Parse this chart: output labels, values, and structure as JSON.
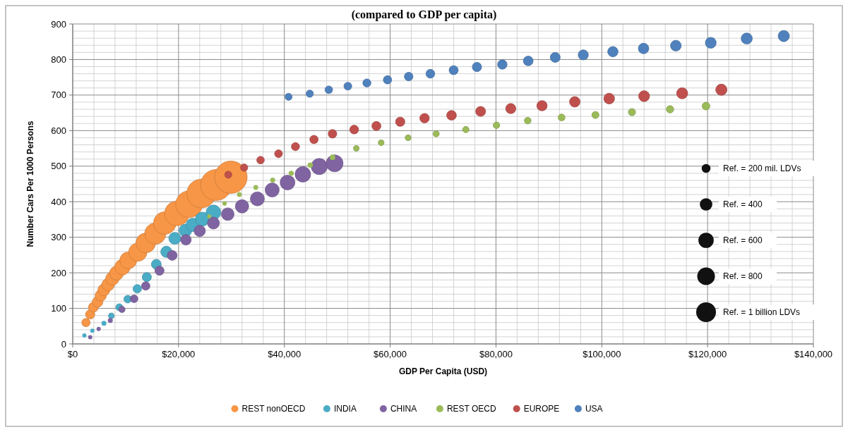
{
  "chart_data": {
    "type": "bubble",
    "title": "(compared to GDP per capita)",
    "xlabel": "GDP Per Capita (USD)",
    "ylabel": "Number Cars Per 1000 Persons",
    "xlim": [
      0,
      140000
    ],
    "ylim": [
      0,
      900
    ],
    "xticks": [
      {
        "value": 0,
        "label": "$0"
      },
      {
        "value": 20000,
        "label": "$20,000"
      },
      {
        "value": 40000,
        "label": "$40,000"
      },
      {
        "value": 60000,
        "label": "$60,000"
      },
      {
        "value": 80000,
        "label": "$80,000"
      },
      {
        "value": 100000,
        "label": "$100,000"
      },
      {
        "value": 120000,
        "label": "$120,000"
      },
      {
        "value": 140000,
        "label": "$140,000"
      }
    ],
    "yticks": [
      0,
      100,
      200,
      300,
      400,
      500,
      600,
      700,
      800,
      900
    ],
    "grid": true,
    "legend": "bottom",
    "size_legend": [
      {
        "value": 200,
        "label": "Ref. = 200 mil. LDVs"
      },
      {
        "value": 400,
        "label": "Ref. = 400"
      },
      {
        "value": 600,
        "label": "Ref. = 600"
      },
      {
        "value": 800,
        "label": "Ref. = 800"
      },
      {
        "value": 1000,
        "label": "Ref. = 1 billion LDVs"
      }
    ],
    "series": [
      {
        "name": "REST nonOECD",
        "color": "#f79646",
        "x": [
          2500,
          3300,
          3900,
          4700,
          5300,
          5900,
          6700,
          7500,
          8300,
          9400,
          10500,
          12300,
          13800,
          15600,
          17400,
          19700,
          22000,
          24300,
          27100,
          29900
        ],
        "values": [
          60,
          83,
          103,
          118,
          136,
          152,
          167,
          184,
          199,
          216,
          235,
          258,
          284,
          310,
          340,
          367,
          393,
          423,
          447,
          469
        ],
        "sizes": [
          180,
          220,
          250,
          290,
          330,
          370,
          410,
          460,
          510,
          620,
          730,
          860,
          1000,
          1150,
          1310,
          1560,
          1840,
          2140,
          2470,
          2700
        ]
      },
      {
        "name": "INDIA",
        "color": "#4bacc6",
        "x": [
          2200,
          3700,
          5900,
          7300,
          8800,
          10400,
          12200,
          14000,
          15800,
          17700,
          19300,
          21300,
          22700,
          24500,
          26600
        ],
        "values": [
          24,
          37,
          58,
          79,
          103,
          126,
          155,
          188,
          224,
          259,
          297,
          319,
          335,
          351,
          370
        ],
        "sizes": [
          46,
          46,
          63,
          82,
          128,
          154,
          184,
          216,
          250,
          327,
          369,
          413,
          460,
          510,
          563
        ]
      },
      {
        "name": "CHINA",
        "color": "#8064a2",
        "x": [
          3300,
          4900,
          7100,
          9300,
          11600,
          13800,
          16400,
          18800,
          21400,
          24000,
          26600,
          29300,
          32000,
          34900,
          37700,
          40600,
          43500,
          46600,
          49500
        ],
        "values": [
          19,
          42,
          66,
          97,
          127,
          163,
          206,
          249,
          293,
          318,
          340,
          365,
          387,
          408,
          433,
          454,
          477,
          499,
          508
        ],
        "sizes": [
          46,
          46,
          63,
          103,
          154,
          184,
          216,
          250,
          287,
          327,
          369,
          413,
          460,
          510,
          510,
          563,
          617,
          675,
          735
        ]
      },
      {
        "name": "REST OECD",
        "color": "#9bbb59",
        "x": [
          25800,
          28700,
          31500,
          34600,
          37800,
          41300,
          44900,
          49100,
          53600,
          58300,
          63400,
          68700,
          74300,
          80100,
          86000,
          92400,
          98800,
          105700,
          112900,
          119700
        ],
        "values": [
          359,
          395,
          420,
          440,
          461,
          480,
          503,
          525,
          550,
          566,
          580,
          591,
          603,
          615,
          628,
          637,
          644,
          652,
          660,
          669
        ],
        "sizes": [
          46,
          50,
          55,
          60,
          63,
          68,
          72,
          77,
          82,
          88,
          93,
          98,
          103,
          110,
          116,
          122,
          128,
          135,
          142,
          154
        ]
      },
      {
        "name": "EUROPE",
        "color": "#c0504d",
        "x": [
          29400,
          32400,
          35500,
          38900,
          42100,
          45600,
          49100,
          53200,
          57400,
          61900,
          66500,
          71600,
          77100,
          82800,
          88700,
          94900,
          101400,
          108000,
          115200,
          122600
        ],
        "values": [
          476,
          496,
          517,
          535,
          555,
          575,
          591,
          603,
          613,
          625,
          635,
          643,
          654,
          662,
          670,
          681,
          690,
          697,
          705,
          715
        ],
        "sizes": [
          128,
          138,
          149,
          159,
          170,
          180,
          191,
          201,
          212,
          222,
          233,
          243,
          254,
          264,
          275,
          285,
          296,
          306,
          317,
          327
        ]
      },
      {
        "name": "USA",
        "color": "#4f81bd",
        "x": [
          40800,
          44800,
          48400,
          52000,
          55600,
          59500,
          63500,
          67600,
          72000,
          76400,
          81200,
          86100,
          91200,
          96500,
          102100,
          107900,
          114000,
          120600,
          127400,
          134400
        ],
        "values": [
          695,
          704,
          715,
          725,
          734,
          743,
          752,
          760,
          770,
          779,
          786,
          796,
          806,
          813,
          822,
          831,
          839,
          847,
          859,
          866
        ],
        "sizes": [
          128,
          138,
          149,
          159,
          170,
          180,
          191,
          201,
          212,
          222,
          233,
          243,
          254,
          264,
          275,
          285,
          296,
          306,
          317,
          327
        ]
      }
    ]
  }
}
